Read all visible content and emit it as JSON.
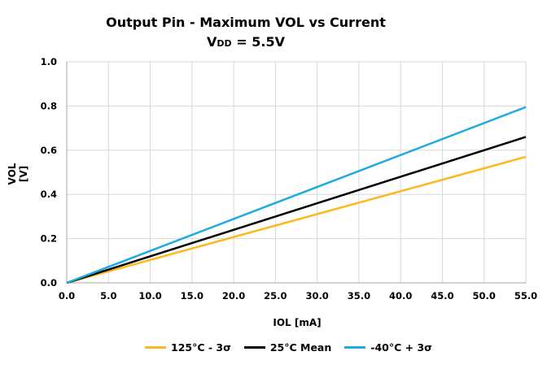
{
  "chart_data": {
    "type": "line",
    "title": "Output Pin - Maximum VOL vs Current",
    "subtitle": {
      "prefix": "V",
      "subscript": "DD",
      "suffix": " = 5.5V"
    },
    "xlabel": "IOL [mA]",
    "ylabel": "VOL [V]",
    "xlim": [
      0,
      55
    ],
    "ylim": [
      0,
      1.0
    ],
    "xticks": [
      "0.0",
      "5.0",
      "10.0",
      "15.0",
      "20.0",
      "25.0",
      "30.0",
      "35.0",
      "40.0",
      "45.0",
      "50.0",
      "55.0"
    ],
    "yticks": [
      "0.0",
      "0.2",
      "0.4",
      "0.6",
      "0.8",
      "1.0"
    ],
    "grid": true,
    "legend_position": "bottom",
    "series": [
      {
        "name": "125°C - 3σ",
        "color": "#FFB81C",
        "x": [
          0,
          55
        ],
        "y": [
          0,
          0.57
        ]
      },
      {
        "name": "25°C Mean",
        "color": "#000000",
        "x": [
          0,
          55
        ],
        "y": [
          0,
          0.66
        ]
      },
      {
        "name": "-40°C + 3σ",
        "color": "#1CABE2",
        "x": [
          0,
          55
        ],
        "y": [
          0,
          0.795
        ]
      }
    ]
  }
}
